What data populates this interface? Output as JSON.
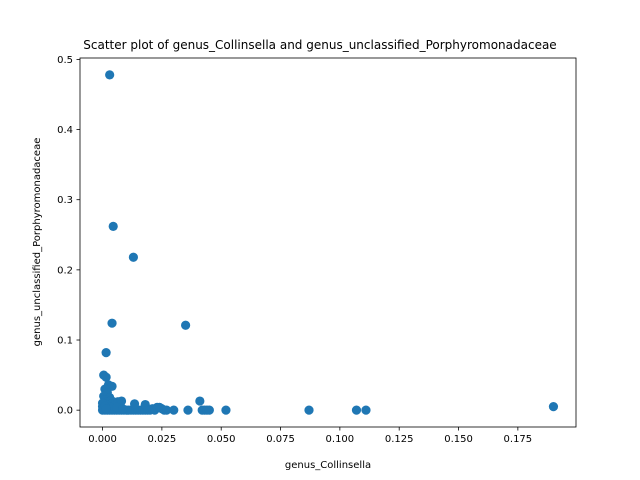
{
  "chart_data": {
    "type": "scatter",
    "title": "Scatter plot of genus_Collinsella and genus_unclassified_Porphyromonadaceae",
    "xlabel": "genus_Collinsella",
    "ylabel": "genus_unclassified_Porphyromonadaceae",
    "xlim": [
      -0.0095,
      0.1995
    ],
    "ylim": [
      -0.024,
      0.502
    ],
    "xticks": [
      0.0,
      0.025,
      0.05,
      0.075,
      0.1,
      0.125,
      0.15,
      0.175
    ],
    "xtick_labels": [
      "0.000",
      "0.025",
      "0.050",
      "0.075",
      "0.100",
      "0.125",
      "0.150",
      "0.175"
    ],
    "yticks": [
      0.0,
      0.1,
      0.2,
      0.3,
      0.4,
      0.5
    ],
    "ytick_labels": [
      "0.0",
      "0.1",
      "0.2",
      "0.3",
      "0.4",
      "0.5"
    ],
    "grid": false,
    "marker_color": "#1f77b4",
    "series": [
      {
        "x": [
          0.003,
          0.0045,
          0.013,
          0.004,
          0.035,
          0.0015,
          0.0005,
          0.0015,
          0.0025,
          0.004,
          0.001,
          0.002,
          0.0005,
          0.003,
          0.001,
          0.002,
          0.0035,
          0.0045,
          0.0055,
          0.0065,
          0.0075,
          0.008,
          0.0,
          0.0,
          0.001,
          0.002,
          0.003,
          0.004,
          0.005,
          0.006,
          0.007,
          0.008,
          0.009,
          0.01,
          0.011,
          0.012,
          0.013,
          0.014,
          0.015,
          0.016,
          0.017,
          0.018,
          0.018,
          0.019,
          0.02,
          0.021,
          0.022,
          0.023,
          0.024,
          0.025,
          0.026,
          0.027,
          0.03,
          0.036,
          0.041,
          0.042,
          0.043,
          0.044,
          0.045,
          0.052,
          0.087,
          0.107,
          0.111,
          0.19,
          0.0005,
          0.0015,
          0.0025,
          0.0035,
          0.001,
          0.002,
          0.003,
          0.0,
          0.0005,
          0.001,
          0.0015,
          0.006,
          0.0085,
          0.0135
        ],
        "y": [
          0.478,
          0.262,
          0.218,
          0.124,
          0.121,
          0.082,
          0.05,
          0.047,
          0.036,
          0.034,
          0.03,
          0.025,
          0.02,
          0.018,
          0.015,
          0.012,
          0.014,
          0.012,
          0.01,
          0.012,
          0.011,
          0.013,
          0.005,
          0.0,
          0.0,
          0.0,
          0.0,
          0.0,
          0.0,
          0.0,
          0.0,
          0.0,
          0.0,
          0.0,
          0.0,
          0.0,
          0.0,
          0.0,
          0.0,
          0.0,
          0.0,
          0.0,
          0.008,
          0.0,
          0.0,
          0.002,
          0.0,
          0.004,
          0.004,
          0.002,
          0.0,
          0.0,
          0.0,
          0.0,
          0.013,
          0.0,
          0.0,
          0.0,
          0.0,
          0.0,
          0.0,
          0.0,
          0.0,
          0.005,
          0.008,
          0.006,
          0.004,
          0.003,
          0.009,
          0.007,
          0.005,
          0.01,
          0.003,
          0.006,
          0.002,
          0.004,
          0.002,
          0.009
        ]
      }
    ]
  }
}
